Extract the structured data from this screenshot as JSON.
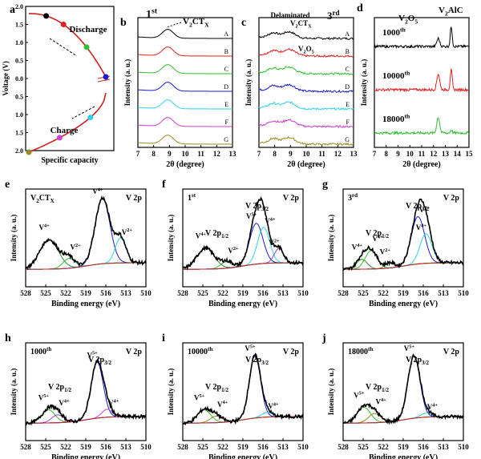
{
  "colors": {
    "A": "#000000",
    "B": "#e02020",
    "C": "#2ec02e",
    "D": "#1a1ad0",
    "E": "#2ed0e8",
    "F": "#d040d0",
    "G": "#9a8a20",
    "envelope": "#000000",
    "baseline": "#c02020",
    "v4": "#2e8b2e",
    "v2": "#2ec02e",
    "v5": "#1a1ad0",
    "v2b": "#2ed0e8"
  },
  "chart_data": [
    {
      "id": "a",
      "type": "line",
      "panel_label": "a",
      "xlabel": "Specific capacity",
      "ylabel": "Voltage (V)",
      "yticks": [
        "2.0",
        "1.5",
        "1.0",
        "0.5",
        "0.0",
        "0.5",
        "1.0",
        "1.5",
        "2.0"
      ],
      "annotations": [
        "Discharge",
        "Charge"
      ],
      "markers": [
        "A",
        "B",
        "C",
        "D",
        "E",
        "F",
        "G"
      ]
    },
    {
      "id": "b",
      "type": "line",
      "panel_label": "b",
      "title": "1st",
      "title_sup": "st",
      "title_main": "1",
      "peak_label": "V2CTX",
      "xlabel": "2θ (degree)",
      "ylabel": "Intensity (a. u.)",
      "xlim": [
        7,
        13
      ],
      "xticks": [
        "7",
        "8",
        "9",
        "10",
        "11",
        "12",
        "13"
      ],
      "series_labels": [
        "A",
        "B",
        "C",
        "D",
        "E",
        "F",
        "G"
      ],
      "peak_position": 8.9
    },
    {
      "id": "c",
      "type": "line",
      "panel_label": "c",
      "title_main": "3",
      "title_sup": "rd",
      "annotations": [
        "Delaminated",
        "V2CTX",
        "V2O5"
      ],
      "xlabel": "2θ (degree)",
      "ylabel": "Intensity (a. u.)",
      "xlim": [
        7,
        13
      ],
      "xticks": [
        "7",
        "8",
        "9",
        "10",
        "11",
        "12",
        "13"
      ],
      "series_labels": [
        "A",
        "B",
        "C",
        "D",
        "E",
        "F",
        "G"
      ]
    },
    {
      "id": "d",
      "type": "line",
      "panel_label": "d",
      "annotations": [
        "V2O5",
        "V2AlC"
      ],
      "xlabel": "2θ (degree)",
      "ylabel": "Intensity (a. u.)",
      "xlim": [
        7,
        15
      ],
      "xticks": [
        "7",
        "8",
        "9",
        "10",
        "11",
        "12",
        "13",
        "14",
        "15"
      ],
      "series": [
        {
          "name": "1000th",
          "main": "1000",
          "sup": "th",
          "color": "#000000"
        },
        {
          "name": "10000th",
          "main": "10000",
          "sup": "th",
          "color": "#e02020"
        },
        {
          "name": "18000th",
          "main": "18000",
          "sup": "th",
          "color": "#2ec02e"
        }
      ],
      "peaks": [
        12.4,
        13.5
      ]
    },
    {
      "id": "e",
      "type": "line",
      "panel_label": "e",
      "sample": "V2CTX",
      "edge": "V 2p",
      "xlabel": "Binding energy (eV)",
      "ylabel": "Intensity (a. u.)",
      "xlim": [
        528,
        510
      ],
      "xticks": [
        "528",
        "525",
        "522",
        "519",
        "516",
        "513",
        "510"
      ],
      "components": [
        {
          "label": "V4+",
          "center": 524.5,
          "amp": 0.45,
          "width": 1.4,
          "color": "#2e8b2e"
        },
        {
          "label": "V2+",
          "center": 521.5,
          "amp": 0.15,
          "width": 0.9,
          "color": "#2ec02e"
        },
        {
          "label": "V4+",
          "center": 516.5,
          "amp": 1.0,
          "width": 1.1,
          "color": "#1a1ad0"
        },
        {
          "label": "V2+",
          "center": 513.8,
          "amp": 0.38,
          "width": 0.8,
          "color": "#2ed0e8"
        }
      ]
    },
    {
      "id": "f",
      "type": "line",
      "panel_label": "f",
      "sample_main": "1",
      "sample_sup": "st",
      "edge": "V 2p",
      "annotations": [
        "V 2p1/2",
        "V 2p3/2"
      ],
      "xlabel": "Binding energy (eV)",
      "ylabel": "Intensity (a. u.)",
      "xlim": [
        528,
        510
      ],
      "xticks": [
        "528",
        "525",
        "522",
        "519",
        "516",
        "513",
        "510"
      ],
      "components": [
        {
          "label": "V4+",
          "center": 524.6,
          "amp": 0.32,
          "width": 1.3,
          "color": "#2e8b2e"
        },
        {
          "label": "V2+",
          "center": 521.4,
          "amp": 0.1,
          "width": 0.9,
          "color": "#2ec02e"
        },
        {
          "label": "V5+",
          "center": 517.0,
          "amp": 0.62,
          "width": 1.0,
          "color": "#1a1ad0"
        },
        {
          "label": "V4+",
          "center": 515.9,
          "amp": 0.55,
          "width": 0.9,
          "color": "#2ed0e8"
        },
        {
          "label": "V2+",
          "center": 513.6,
          "amp": 0.22,
          "width": 0.7,
          "color": "#9a40c0"
        }
      ]
    },
    {
      "id": "g",
      "type": "line",
      "panel_label": "g",
      "sample_main": "3",
      "sample_sup": "rd",
      "edge": "V 2p",
      "annotations": [
        "V 2p1/2",
        "V 2p3/2"
      ],
      "xlabel": "Binding energy (eV)",
      "ylabel": "Intensity (a. u.)",
      "xlim": [
        528,
        510
      ],
      "xticks": [
        "528",
        "525",
        "522",
        "519",
        "516",
        "513",
        "510"
      ],
      "components": [
        {
          "label": "V4+",
          "center": 525.2,
          "amp": 0.15,
          "width": 0.8,
          "color": "#2e8b2e"
        },
        {
          "label": "V4+",
          "center": 523.8,
          "amp": 0.28,
          "width": 0.9,
          "color": "#2ec02e"
        },
        {
          "label": "V2+",
          "center": 521.0,
          "amp": 0.08,
          "width": 0.7,
          "color": "#9a8a20"
        },
        {
          "label": "V5+",
          "center": 516.8,
          "amp": 0.72,
          "width": 1.0,
          "color": "#1a1ad0"
        },
        {
          "label": "V4+",
          "center": 515.6,
          "amp": 0.45,
          "width": 0.9,
          "color": "#2ed0e8"
        }
      ]
    },
    {
      "id": "h",
      "type": "line",
      "panel_label": "h",
      "sample_main": "1000",
      "sample_sup": "th",
      "edge": "V 2p",
      "annotations": [
        "V 2p1/2",
        "V 2p3/2"
      ],
      "xlabel": "Binding energy (eV)",
      "ylabel": "Intensity (a. u.)",
      "xlim": [
        528,
        510
      ],
      "xticks": [
        "528",
        "525",
        "522",
        "519",
        "516",
        "513",
        "510"
      ],
      "components": [
        {
          "label": "V5+",
          "center": 524.6,
          "amp": 0.2,
          "width": 1.0,
          "color": "#2ec02e"
        },
        {
          "label": "V4+",
          "center": 523.2,
          "amp": 0.12,
          "width": 0.9,
          "color": "#9a40c0"
        },
        {
          "label": "V5+",
          "center": 517.3,
          "amp": 0.85,
          "width": 0.9,
          "color": "#1a1ad0"
        },
        {
          "label": "V4+",
          "center": 515.8,
          "amp": 0.12,
          "width": 0.8,
          "color": "#d040d0"
        }
      ]
    },
    {
      "id": "i",
      "type": "line",
      "panel_label": "i",
      "sample_main": "10000",
      "sample_sup": "th",
      "edge": "V 2p",
      "annotations": [
        "V 2p1/2",
        "V 2p3/2"
      ],
      "xlabel": "Binding energy (eV)",
      "ylabel": "Intensity (a. u.)",
      "xlim": [
        528,
        510
      ],
      "xticks": [
        "528",
        "525",
        "522",
        "519",
        "516",
        "513",
        "510"
      ],
      "components": [
        {
          "label": "V5+",
          "center": 524.8,
          "amp": 0.2,
          "width": 1.0,
          "color": "#2ec02e"
        },
        {
          "label": "V4+",
          "center": 523.0,
          "amp": 0.1,
          "width": 0.9,
          "color": "#9a8a20"
        },
        {
          "label": "V5+",
          "center": 517.2,
          "amp": 0.95,
          "width": 0.85,
          "color": "#1a1ad0"
        },
        {
          "label": "V4+",
          "center": 515.4,
          "amp": 0.07,
          "width": 0.8,
          "color": "#2ed0e8"
        }
      ]
    },
    {
      "id": "j",
      "type": "line",
      "panel_label": "j",
      "sample_main": "18000",
      "sample_sup": "th",
      "edge": "V 2p",
      "annotations": [
        "V 2p1/2",
        "V 2p3/2"
      ],
      "xlabel": "Binding energy (eV)",
      "ylabel": "Intensity (a. u.)",
      "xlim": [
        528,
        510
      ],
      "xticks": [
        "528",
        "525",
        "522",
        "519",
        "516",
        "513",
        "510"
      ],
      "components": [
        {
          "label": "V5+",
          "center": 524.9,
          "amp": 0.24,
          "width": 1.0,
          "color": "#2ec02e"
        },
        {
          "label": "V4+",
          "center": 523.3,
          "amp": 0.14,
          "width": 0.9,
          "color": "#9a8a20"
        },
        {
          "label": "V5+",
          "center": 517.4,
          "amp": 0.95,
          "width": 0.9,
          "color": "#1a1ad0"
        },
        {
          "label": "V4+",
          "center": 515.6,
          "amp": 0.06,
          "width": 0.8,
          "color": "#2ed0e8"
        }
      ]
    }
  ]
}
